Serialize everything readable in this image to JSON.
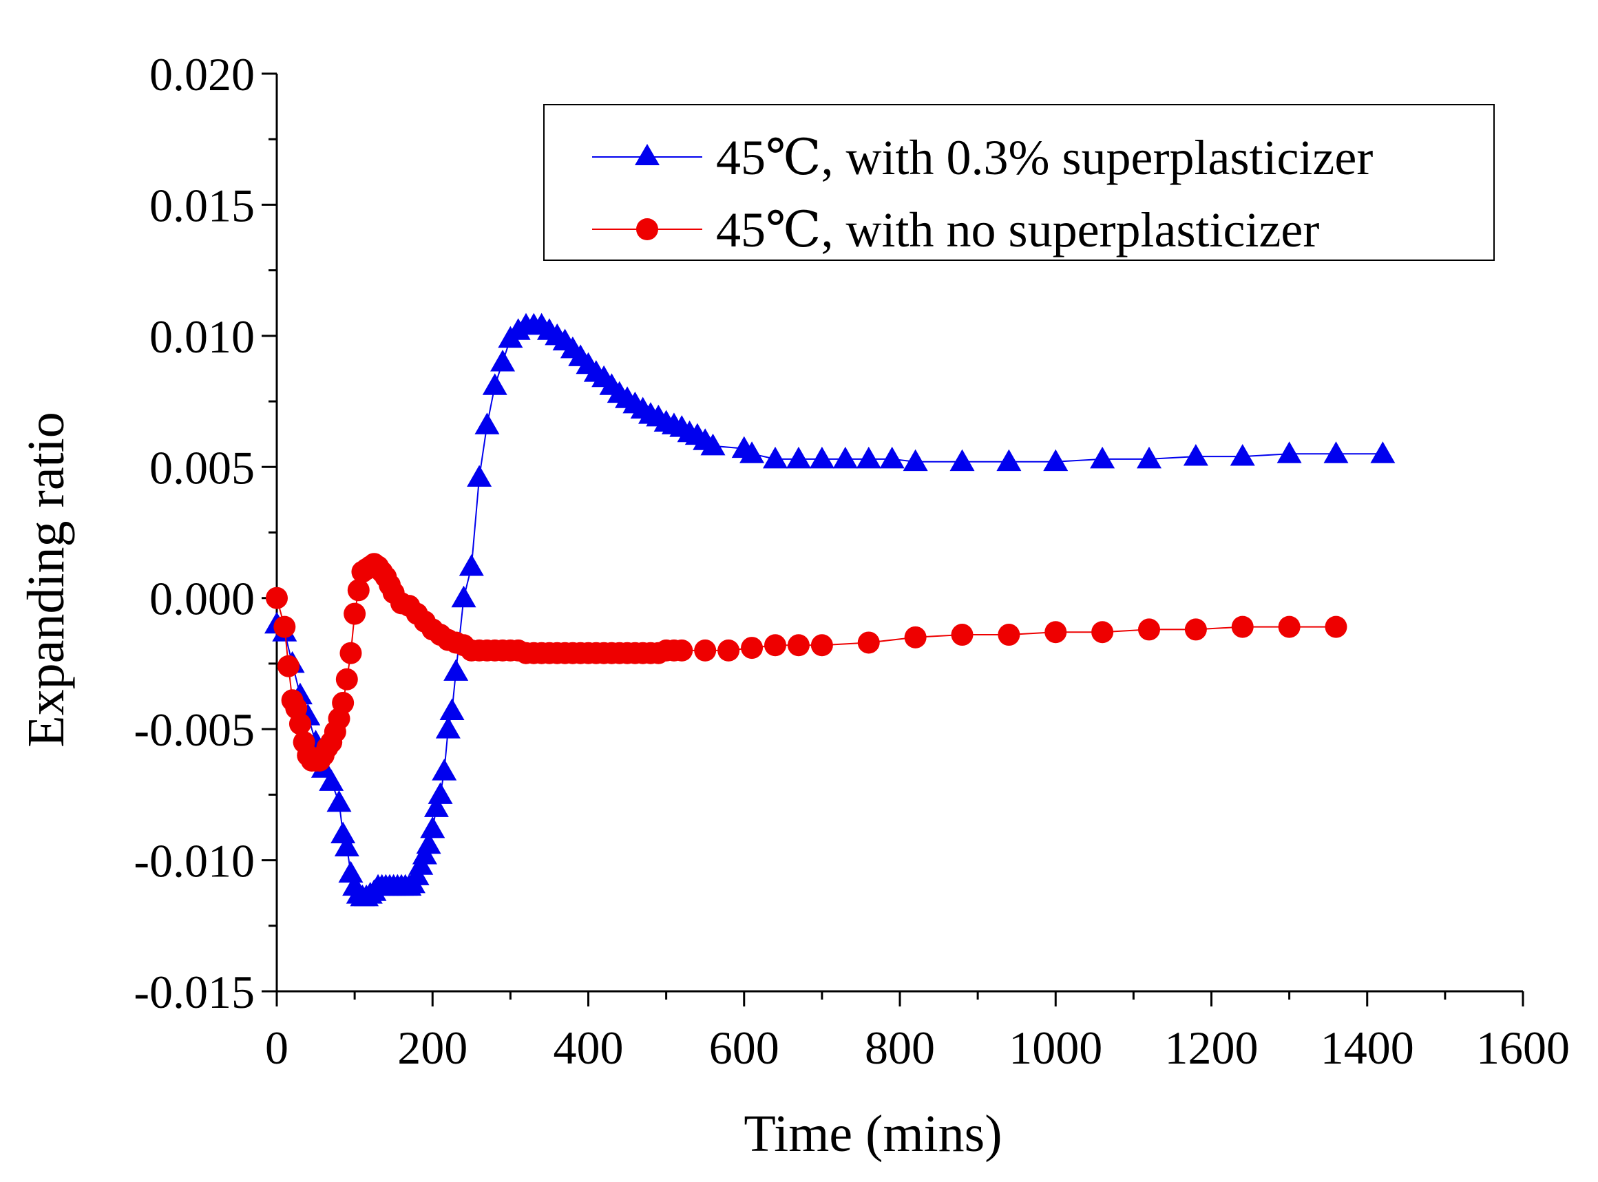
{
  "chart_data": {
    "type": "line",
    "title": "",
    "xlabel": "Time (mins)",
    "ylabel": "Expanding ratio",
    "xlim": [
      0,
      1600
    ],
    "ylim": [
      -0.015,
      0.02
    ],
    "x_ticks": [
      0,
      200,
      400,
      600,
      800,
      1000,
      1200,
      1400,
      1600
    ],
    "x_tick_labels": [
      "0",
      "200",
      "400",
      "600",
      "800",
      "1000",
      "1200",
      "1400",
      "1600"
    ],
    "y_ticks": [
      -0.015,
      -0.01,
      -0.005,
      0.0,
      0.005,
      0.01,
      0.015,
      0.02
    ],
    "y_tick_labels": [
      "-0.015",
      "-0.010",
      "-0.005",
      "0.000",
      "0.005",
      "0.010",
      "0.015",
      "0.020"
    ],
    "grid": false,
    "legend_position": "top-right",
    "series": [
      {
        "name": "45℃, with 0.3% superplasticizer",
        "color": "#0000ee",
        "marker": "triangle",
        "x": [
          0,
          10,
          20,
          30,
          40,
          50,
          60,
          70,
          80,
          85,
          90,
          95,
          100,
          105,
          110,
          115,
          120,
          125,
          130,
          135,
          140,
          145,
          150,
          155,
          160,
          165,
          170,
          175,
          180,
          185,
          190,
          195,
          200,
          205,
          210,
          215,
          220,
          225,
          230,
          240,
          250,
          260,
          270,
          280,
          290,
          300,
          310,
          320,
          330,
          340,
          350,
          360,
          370,
          380,
          390,
          400,
          410,
          420,
          430,
          440,
          450,
          460,
          470,
          480,
          490,
          500,
          510,
          520,
          530,
          540,
          550,
          560,
          600,
          610,
          640,
          670,
          700,
          730,
          760,
          790,
          820,
          880,
          940,
          1000,
          1060,
          1120,
          1180,
          1240,
          1300,
          1360,
          1420
        ],
        "y": [
          -0.001,
          -0.0013,
          -0.0025,
          -0.0037,
          -0.0045,
          -0.0055,
          -0.0065,
          -0.007,
          -0.0078,
          -0.009,
          -0.0095,
          -0.0105,
          -0.011,
          -0.0113,
          -0.0114,
          -0.0114,
          -0.0113,
          -0.0112,
          -0.011,
          -0.011,
          -0.011,
          -0.011,
          -0.011,
          -0.011,
          -0.011,
          -0.011,
          -0.011,
          -0.0109,
          -0.0106,
          -0.0102,
          -0.0098,
          -0.0094,
          -0.0088,
          -0.008,
          -0.0075,
          -0.0066,
          -0.005,
          -0.0043,
          -0.0028,
          0.0,
          0.0012,
          0.0046,
          0.0066,
          0.0081,
          0.009,
          0.0099,
          0.0102,
          0.0104,
          0.0104,
          0.0104,
          0.0102,
          0.01,
          0.0098,
          0.0095,
          0.0092,
          0.0089,
          0.0086,
          0.0084,
          0.0081,
          0.0078,
          0.0076,
          0.0074,
          0.0072,
          0.007,
          0.0069,
          0.0067,
          0.0066,
          0.0065,
          0.0063,
          0.0062,
          0.006,
          0.0058,
          0.0057,
          0.0055,
          0.0053,
          0.0053,
          0.0053,
          0.0053,
          0.0053,
          0.0053,
          0.0052,
          0.0052,
          0.0052,
          0.0052,
          0.0053,
          0.0053,
          0.0054,
          0.0054,
          0.0055,
          0.0055,
          0.0055
        ]
      },
      {
        "name": "45℃, with no superplasticizer",
        "color": "#ee0000",
        "marker": "circle",
        "x": [
          0,
          10,
          15,
          20,
          25,
          30,
          35,
          40,
          45,
          50,
          55,
          60,
          65,
          70,
          75,
          80,
          85,
          90,
          95,
          100,
          105,
          110,
          115,
          120,
          125,
          130,
          135,
          140,
          145,
          150,
          160,
          170,
          180,
          190,
          200,
          210,
          220,
          230,
          240,
          250,
          260,
          270,
          280,
          290,
          300,
          310,
          320,
          330,
          340,
          350,
          360,
          370,
          380,
          390,
          400,
          410,
          420,
          430,
          440,
          450,
          460,
          470,
          480,
          490,
          500,
          510,
          520,
          550,
          580,
          610,
          640,
          670,
          700,
          760,
          820,
          880,
          940,
          1000,
          1060,
          1120,
          1180,
          1240,
          1300,
          1360
        ],
        "y": [
          0.0,
          -0.0011,
          -0.0026,
          -0.0039,
          -0.0042,
          -0.0048,
          -0.0055,
          -0.006,
          -0.0062,
          -0.0062,
          -0.0062,
          -0.006,
          -0.0057,
          -0.0055,
          -0.0051,
          -0.0046,
          -0.004,
          -0.0031,
          -0.0021,
          -0.0006,
          0.0003,
          0.001,
          0.0011,
          0.0012,
          0.0013,
          0.0012,
          0.001,
          0.0008,
          0.0005,
          0.0002,
          -0.0002,
          -0.0003,
          -0.0006,
          -0.0009,
          -0.0012,
          -0.0014,
          -0.0016,
          -0.0017,
          -0.0018,
          -0.002,
          -0.002,
          -0.002,
          -0.002,
          -0.002,
          -0.002,
          -0.002,
          -0.0021,
          -0.0021,
          -0.0021,
          -0.0021,
          -0.0021,
          -0.0021,
          -0.0021,
          -0.0021,
          -0.0021,
          -0.0021,
          -0.0021,
          -0.0021,
          -0.0021,
          -0.0021,
          -0.0021,
          -0.0021,
          -0.0021,
          -0.0021,
          -0.002,
          -0.002,
          -0.002,
          -0.002,
          -0.002,
          -0.0019,
          -0.0018,
          -0.0018,
          -0.0018,
          -0.0017,
          -0.0015,
          -0.0014,
          -0.0014,
          -0.0013,
          -0.0013,
          -0.0012,
          -0.0012,
          -0.0011,
          -0.0011,
          -0.0011
        ]
      }
    ]
  }
}
